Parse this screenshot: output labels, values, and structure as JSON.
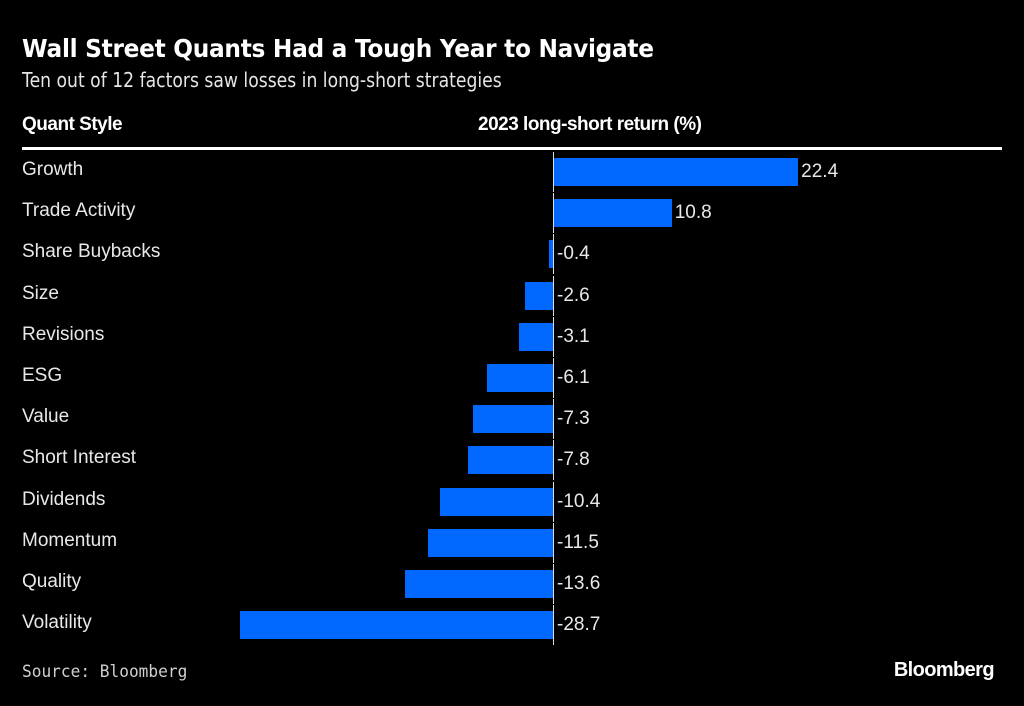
{
  "header": {
    "title": "Wall Street Quants Had a Tough Year to Navigate",
    "subtitle": "Ten out of 12 factors saw losses in long-short strategies"
  },
  "footer": {
    "source": "Source: Bloomberg",
    "brand": "Bloomberg"
  },
  "chart_data": {
    "type": "bar",
    "orientation": "horizontal",
    "title": "Wall Street Quants Had a Tough Year to Navigate",
    "subtitle": "Ten out of 12 factors saw losses in long-short strategies",
    "category_header": "Quant Style",
    "value_header": "2023 long-short return (%)",
    "xlabel": "2023 long-short return (%)",
    "ylabel": "Quant Style",
    "categories": [
      "Growth",
      "Trade Activity",
      "Share Buybacks",
      "Size",
      "Revisions",
      "ESG",
      "Value",
      "Short Interest",
      "Dividends",
      "Momentum",
      "Quality",
      "Volatility"
    ],
    "values": [
      22.4,
      10.8,
      -0.4,
      -2.6,
      -3.1,
      -6.1,
      -7.3,
      -7.8,
      -10.4,
      -11.5,
      -13.6,
      -28.7
    ],
    "value_labels": [
      "22.4",
      "10.8",
      "-0.4",
      "-2.6",
      "-3.1",
      "-6.1",
      "-7.3",
      "-7.8",
      "-10.4",
      "-11.5",
      "-13.6",
      "-28.7"
    ],
    "bar_color": "#0068ff",
    "background": "#000000",
    "grid": false,
    "legend": "none",
    "source": "Source: Bloomberg"
  }
}
